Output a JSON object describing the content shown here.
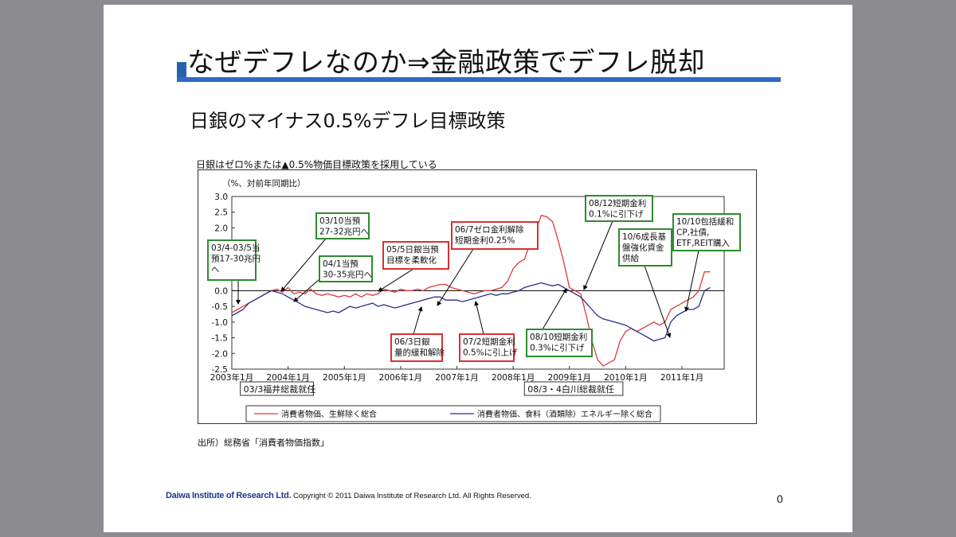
{
  "slide": {
    "title": "なぜデフレなのか⇒金融政策でデフレ脱却",
    "subtitle": "日銀のマイナス0.5%デフレ目標政策",
    "chart_caption": "日銀はゼロ%または▲0.5%物価目標政策を採用している",
    "source": "出所）総務省「消費者物価指数」",
    "footer_logo": "Daiwa Institute of Research Ltd.",
    "copyright": "Copyright © 2011 Daiwa Institute of Research Ltd. All Rights Reserved.",
    "page_number": "0"
  },
  "colors": {
    "accent": "#2e6cc0",
    "series1": "#e0383a",
    "series2": "#2a2f8a",
    "box_green": "#2e8b2e",
    "box_red": "#d93030"
  },
  "chart_data": {
    "type": "line",
    "unit_label": "（%、対前年同期比）",
    "ylim": [
      -2.5,
      3.0
    ],
    "yticks": [
      "3.0",
      "2.5",
      "2.0",
      "1.5",
      "1.0",
      "0.5",
      "0.0",
      "-0.5",
      "-1.0",
      "-1.5",
      "-2.0",
      "-2.5"
    ],
    "xlim": [
      2003.0,
      2011.75
    ],
    "xticks": [
      "2003年1月",
      "2004年1月",
      "2005年1月",
      "2006年1月",
      "2007年1月",
      "2008年1月",
      "2009年1月",
      "2010年1月",
      "2011年1月"
    ],
    "series": [
      {
        "name": "消費者物価、生鮮除く総合",
        "color": "#e0383a",
        "points": [
          [
            2003.0,
            -0.7
          ],
          [
            2003.1,
            -0.6
          ],
          [
            2003.2,
            -0.5
          ],
          [
            2003.3,
            -0.4
          ],
          [
            2003.4,
            -0.3
          ],
          [
            2003.5,
            -0.2
          ],
          [
            2003.6,
            -0.1
          ],
          [
            2003.7,
            0.0
          ],
          [
            2003.8,
            0.05
          ],
          [
            2003.9,
            -0.05
          ],
          [
            2004.0,
            0.1
          ],
          [
            2004.1,
            -0.1
          ],
          [
            2004.2,
            -0.05
          ],
          [
            2004.3,
            -0.1
          ],
          [
            2004.4,
            0.05
          ],
          [
            2004.5,
            -0.1
          ],
          [
            2004.6,
            -0.15
          ],
          [
            2004.7,
            -0.1
          ],
          [
            2004.8,
            -0.15
          ],
          [
            2004.9,
            -0.2
          ],
          [
            2005.0,
            -0.15
          ],
          [
            2005.1,
            -0.2
          ],
          [
            2005.2,
            -0.1
          ],
          [
            2005.3,
            -0.2
          ],
          [
            2005.4,
            -0.1
          ],
          [
            2005.5,
            -0.15
          ],
          [
            2005.6,
            -0.1
          ],
          [
            2005.7,
            0.05
          ],
          [
            2005.8,
            0.0
          ],
          [
            2005.9,
            -0.05
          ],
          [
            2006.0,
            0.05
          ],
          [
            2006.1,
            0.0
          ],
          [
            2006.2,
            0.0
          ],
          [
            2006.3,
            0.05
          ],
          [
            2006.4,
            0.0
          ],
          [
            2006.5,
            0.1
          ],
          [
            2006.6,
            0.15
          ],
          [
            2006.7,
            0.2
          ],
          [
            2006.8,
            0.2
          ],
          [
            2006.9,
            0.1
          ],
          [
            2007.0,
            0.05
          ],
          [
            2007.1,
            0.0
          ],
          [
            2007.2,
            -0.05
          ],
          [
            2007.3,
            -0.1
          ],
          [
            2007.4,
            -0.05
          ],
          [
            2007.5,
            0.0
          ],
          [
            2007.6,
            0.0
          ],
          [
            2007.7,
            0.05
          ],
          [
            2007.8,
            0.1
          ],
          [
            2007.9,
            0.3
          ],
          [
            2008.0,
            0.7
          ],
          [
            2008.1,
            0.9
          ],
          [
            2008.2,
            1.0
          ],
          [
            2008.3,
            1.5
          ],
          [
            2008.4,
            1.9
          ],
          [
            2008.5,
            2.4
          ],
          [
            2008.6,
            2.35
          ],
          [
            2008.7,
            2.2
          ],
          [
            2008.8,
            1.6
          ],
          [
            2008.9,
            0.9
          ],
          [
            2009.0,
            0.1
          ],
          [
            2009.1,
            0.0
          ],
          [
            2009.2,
            -0.1
          ],
          [
            2009.3,
            -0.8
          ],
          [
            2009.4,
            -1.6
          ],
          [
            2009.5,
            -2.2
          ],
          [
            2009.6,
            -2.4
          ],
          [
            2009.7,
            -2.3
          ],
          [
            2009.8,
            -2.2
          ],
          [
            2009.9,
            -1.6
          ],
          [
            2010.0,
            -1.3
          ],
          [
            2010.1,
            -1.2
          ],
          [
            2010.2,
            -1.3
          ],
          [
            2010.3,
            -1.2
          ],
          [
            2010.4,
            -1.1
          ],
          [
            2010.5,
            -1.0
          ],
          [
            2010.6,
            -1.1
          ],
          [
            2010.7,
            -1.0
          ],
          [
            2010.8,
            -0.6
          ],
          [
            2010.9,
            -0.5
          ],
          [
            2011.0,
            -0.4
          ],
          [
            2011.1,
            -0.3
          ],
          [
            2011.2,
            -0.2
          ],
          [
            2011.3,
            0.0
          ],
          [
            2011.4,
            0.6
          ],
          [
            2011.5,
            0.6
          ]
        ]
      },
      {
        "name": "消費者物価、食料（酒類除）エネルギー除く総合",
        "color": "#2a2f8a",
        "points": [
          [
            2003.0,
            -0.8
          ],
          [
            2003.1,
            -0.7
          ],
          [
            2003.2,
            -0.6
          ],
          [
            2003.3,
            -0.4
          ],
          [
            2003.4,
            -0.3
          ],
          [
            2003.5,
            -0.2
          ],
          [
            2003.6,
            -0.1
          ],
          [
            2003.7,
            0.0
          ],
          [
            2003.8,
            -0.05
          ],
          [
            2003.9,
            -0.1
          ],
          [
            2004.0,
            -0.2
          ],
          [
            2004.1,
            -0.3
          ],
          [
            2004.2,
            -0.4
          ],
          [
            2004.3,
            -0.5
          ],
          [
            2004.4,
            -0.55
          ],
          [
            2004.5,
            -0.6
          ],
          [
            2004.6,
            -0.65
          ],
          [
            2004.7,
            -0.7
          ],
          [
            2004.8,
            -0.65
          ],
          [
            2004.9,
            -0.7
          ],
          [
            2005.0,
            -0.6
          ],
          [
            2005.1,
            -0.5
          ],
          [
            2005.2,
            -0.55
          ],
          [
            2005.3,
            -0.5
          ],
          [
            2005.4,
            -0.45
          ],
          [
            2005.5,
            -0.4
          ],
          [
            2005.6,
            -0.5
          ],
          [
            2005.7,
            -0.45
          ],
          [
            2005.8,
            -0.5
          ],
          [
            2005.9,
            -0.55
          ],
          [
            2006.0,
            -0.5
          ],
          [
            2006.1,
            -0.45
          ],
          [
            2006.2,
            -0.4
          ],
          [
            2006.3,
            -0.35
          ],
          [
            2006.4,
            -0.3
          ],
          [
            2006.5,
            -0.25
          ],
          [
            2006.6,
            -0.2
          ],
          [
            2006.7,
            -0.2
          ],
          [
            2006.8,
            -0.3
          ],
          [
            2006.9,
            -0.3
          ],
          [
            2007.0,
            -0.3
          ],
          [
            2007.1,
            -0.35
          ],
          [
            2007.2,
            -0.3
          ],
          [
            2007.3,
            -0.25
          ],
          [
            2007.4,
            -0.2
          ],
          [
            2007.5,
            -0.15
          ],
          [
            2007.6,
            -0.1
          ],
          [
            2007.7,
            -0.15
          ],
          [
            2007.8,
            -0.1
          ],
          [
            2007.9,
            -0.1
          ],
          [
            2008.0,
            -0.05
          ],
          [
            2008.1,
            0.0
          ],
          [
            2008.2,
            0.1
          ],
          [
            2008.3,
            0.15
          ],
          [
            2008.4,
            0.2
          ],
          [
            2008.5,
            0.25
          ],
          [
            2008.6,
            0.2
          ],
          [
            2008.7,
            0.15
          ],
          [
            2008.8,
            0.2
          ],
          [
            2008.9,
            0.1
          ],
          [
            2009.0,
            0.0
          ],
          [
            2009.1,
            -0.1
          ],
          [
            2009.2,
            -0.2
          ],
          [
            2009.3,
            -0.4
          ],
          [
            2009.4,
            -0.6
          ],
          [
            2009.5,
            -0.8
          ],
          [
            2009.6,
            -0.9
          ],
          [
            2009.7,
            -0.95
          ],
          [
            2009.8,
            -1.0
          ],
          [
            2009.9,
            -1.05
          ],
          [
            2010.0,
            -1.1
          ],
          [
            2010.1,
            -1.2
          ],
          [
            2010.2,
            -1.3
          ],
          [
            2010.3,
            -1.4
          ],
          [
            2010.4,
            -1.5
          ],
          [
            2010.5,
            -1.6
          ],
          [
            2010.6,
            -1.55
          ],
          [
            2010.7,
            -1.5
          ],
          [
            2010.8,
            -1.0
          ],
          [
            2010.9,
            -0.8
          ],
          [
            2011.0,
            -0.7
          ],
          [
            2011.1,
            -0.6
          ],
          [
            2011.2,
            -0.6
          ],
          [
            2011.3,
            -0.5
          ],
          [
            2011.4,
            0.0
          ],
          [
            2011.5,
            0.1
          ]
        ]
      }
    ],
    "annotations": [
      {
        "id": "a1",
        "style": "green",
        "lines": [
          "03/4-03/5当",
          "預17-30兆円",
          "へ"
        ]
      },
      {
        "id": "a2",
        "style": "green",
        "lines": [
          "03/10当預",
          "27-32兆円へ"
        ]
      },
      {
        "id": "a3",
        "style": "green",
        "lines": [
          "04/1当預",
          "30-35兆円へ"
        ]
      },
      {
        "id": "a4",
        "style": "red",
        "lines": [
          "05/5日銀当預",
          "目標を柔軟化"
        ]
      },
      {
        "id": "a5",
        "style": "red",
        "lines": [
          "06/7ゼロ金利解除",
          "短期金利0.25%"
        ]
      },
      {
        "id": "a6",
        "style": "red",
        "lines": [
          "06/3日銀",
          "量的緩和解除"
        ]
      },
      {
        "id": "a7",
        "style": "red",
        "lines": [
          "07/2短期金利",
          "0.5%に引上げ"
        ]
      },
      {
        "id": "a8",
        "style": "green",
        "lines": [
          "08/10短期金利",
          "0.3%に引下げ"
        ]
      },
      {
        "id": "a9",
        "style": "green",
        "lines": [
          "08/12短期金利",
          "0.1%に引下げ"
        ]
      },
      {
        "id": "a10",
        "style": "green",
        "lines": [
          "10/6成長基",
          "盤強化資金",
          "供給"
        ]
      },
      {
        "id": "a11",
        "style": "green",
        "lines": [
          "10/10包括緩和",
          "CP,社債,",
          "ETF,REIT購入"
        ]
      }
    ],
    "governors": [
      "03/3福井総裁就任",
      "08/3・4白川総裁就任"
    ],
    "legend_position": "bottom"
  }
}
